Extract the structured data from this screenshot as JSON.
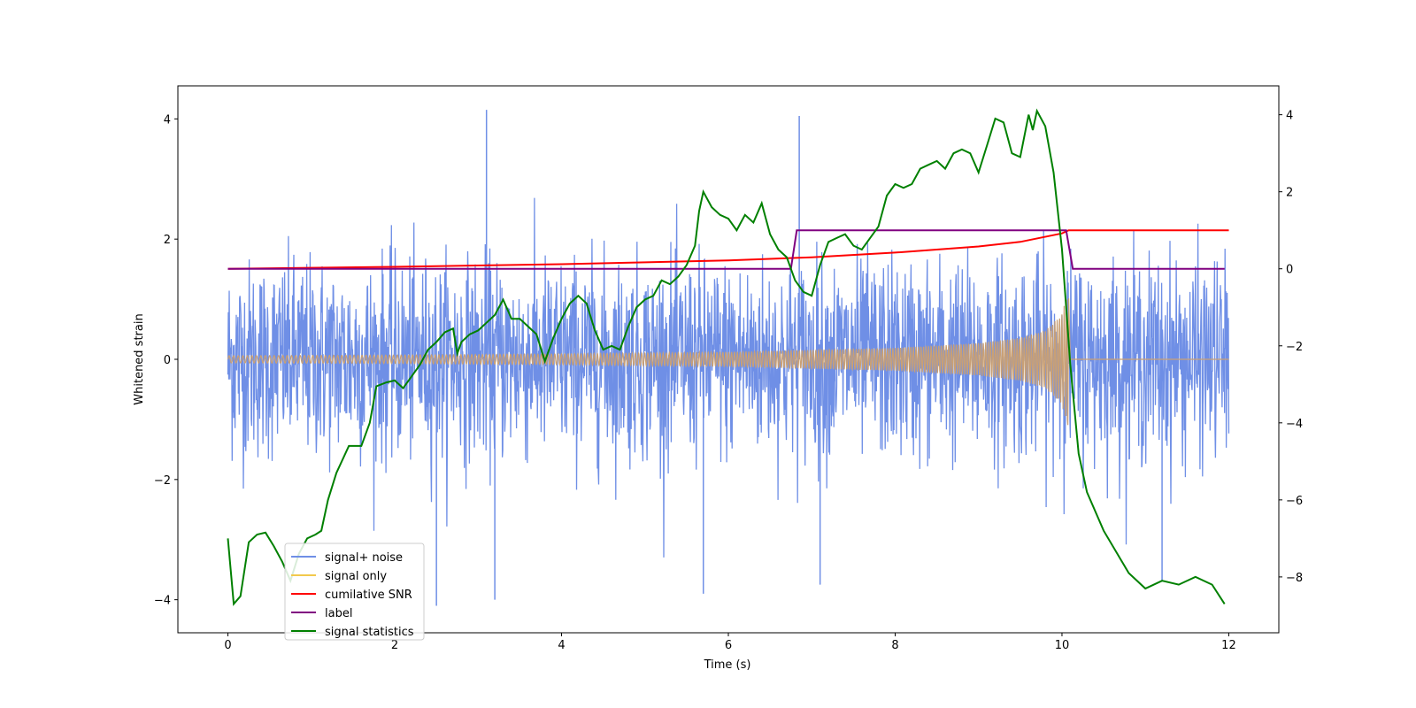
{
  "chart_data": {
    "type": "line",
    "title": "",
    "xlabel": "Time (s)",
    "ylabel": "Whitened strain",
    "xlim": [
      -0.6,
      12.6
    ],
    "ylim": [
      -4.55,
      4.55
    ],
    "y2lim": [
      -9.45,
      4.75
    ],
    "x_ticks": [
      0,
      2,
      4,
      6,
      8,
      10,
      12
    ],
    "y_ticks": [
      -4,
      -2,
      0,
      2,
      4
    ],
    "y2_ticks": [
      -8,
      -6,
      -4,
      -2,
      0,
      2,
      4
    ],
    "legend_position": "lower-left",
    "colors": {
      "noise": "#6f8fe6",
      "signal": "#c9a075",
      "snr": "#ff0000",
      "label": "#800080",
      "stats": "#008000"
    },
    "series": [
      {
        "name": "signal+ noise",
        "axis": "left",
        "style": "dense noise band, |strain| mostly within 1.4 with spikes up to about ±4.1",
        "spike_points": [
          {
            "x": 3.1,
            "y": 4.15
          },
          {
            "x": 6.85,
            "y": 4.05
          },
          {
            "x": 3.2,
            "y": -4.0
          },
          {
            "x": 2.5,
            "y": -4.1
          },
          {
            "x": 5.7,
            "y": -3.9
          },
          {
            "x": 7.1,
            "y": -3.75
          },
          {
            "x": 11.2,
            "y": -3.7
          }
        ]
      },
      {
        "name": "signal only",
        "axis": "left",
        "style": "chirp with growing amplitude, merger at t = 10.08 s",
        "envelope": {
          "x": [
            0,
            2,
            4,
            6,
            8,
            9,
            9.5,
            9.8,
            10.0,
            10.08
          ],
          "amplitude": [
            0.06,
            0.07,
            0.09,
            0.12,
            0.19,
            0.27,
            0.36,
            0.48,
            0.75,
            1.2
          ]
        }
      },
      {
        "name": "cumilative SNR",
        "axis": "right",
        "x": [
          0,
          2,
          4,
          6,
          7,
          8,
          9,
          9.5,
          10.0,
          10.08,
          12
        ],
        "y": [
          0,
          0.05,
          0.12,
          0.22,
          0.3,
          0.42,
          0.58,
          0.7,
          0.92,
          1.0,
          1.0
        ]
      },
      {
        "name": "label",
        "axis": "right",
        "x": [
          0,
          6.75,
          6.82,
          10.05,
          10.13,
          11.95
        ],
        "y": [
          0,
          0,
          1,
          1,
          0,
          0
        ]
      },
      {
        "name": "signal statistics",
        "axis": "right",
        "x": [
          0,
          0.07,
          0.15,
          0.25,
          0.35,
          0.45,
          0.55,
          0.65,
          0.75,
          0.85,
          0.95,
          1.05,
          1.12,
          1.2,
          1.3,
          1.45,
          1.6,
          1.7,
          1.78,
          1.9,
          2.0,
          2.1,
          2.2,
          2.3,
          2.4,
          2.5,
          2.6,
          2.7,
          2.75,
          2.8,
          2.9,
          3.0,
          3.1,
          3.2,
          3.3,
          3.4,
          3.5,
          3.6,
          3.7,
          3.8,
          3.9,
          4.0,
          4.1,
          4.2,
          4.3,
          4.4,
          4.5,
          4.6,
          4.7,
          4.8,
          4.9,
          5.0,
          5.1,
          5.2,
          5.3,
          5.4,
          5.5,
          5.6,
          5.65,
          5.7,
          5.8,
          5.9,
          6.0,
          6.1,
          6.2,
          6.3,
          6.4,
          6.5,
          6.6,
          6.7,
          6.8,
          6.9,
          7.0,
          7.1,
          7.2,
          7.3,
          7.4,
          7.5,
          7.6,
          7.7,
          7.8,
          7.9,
          8.0,
          8.1,
          8.2,
          8.3,
          8.4,
          8.5,
          8.6,
          8.7,
          8.8,
          8.9,
          9.0,
          9.1,
          9.2,
          9.3,
          9.4,
          9.5,
          9.6,
          9.65,
          9.7,
          9.8,
          9.9,
          10.0,
          10.1,
          10.2,
          10.3,
          10.5,
          10.8,
          11.0,
          11.2,
          11.4,
          11.6,
          11.8,
          11.95
        ],
        "y": [
          -7.0,
          -8.7,
          -8.5,
          -7.1,
          -6.9,
          -6.85,
          -7.2,
          -7.6,
          -8.1,
          -7.4,
          -7.0,
          -6.9,
          -6.8,
          -6.0,
          -5.3,
          -4.6,
          -4.6,
          -4.0,
          -3.05,
          -2.95,
          -2.9,
          -3.1,
          -2.8,
          -2.5,
          -2.1,
          -1.9,
          -1.65,
          -1.55,
          -2.2,
          -1.9,
          -1.7,
          -1.6,
          -1.4,
          -1.2,
          -0.8,
          -1.3,
          -1.3,
          -1.5,
          -1.7,
          -2.4,
          -1.8,
          -1.3,
          -0.9,
          -0.7,
          -0.9,
          -1.6,
          -2.1,
          -2.0,
          -2.1,
          -1.5,
          -1.0,
          -0.8,
          -0.7,
          -0.3,
          -0.4,
          -0.2,
          0.1,
          0.6,
          1.5,
          2.0,
          1.6,
          1.4,
          1.3,
          1.0,
          1.4,
          1.2,
          1.7,
          0.9,
          0.5,
          0.3,
          -0.3,
          -0.6,
          -0.7,
          0.1,
          0.7,
          0.8,
          0.9,
          0.6,
          0.5,
          0.8,
          1.1,
          1.9,
          2.2,
          2.1,
          2.2,
          2.6,
          2.7,
          2.8,
          2.6,
          3.0,
          3.1,
          3.0,
          2.5,
          3.2,
          3.9,
          3.8,
          3.0,
          2.9,
          4.0,
          3.6,
          4.1,
          3.7,
          2.5,
          0.5,
          -2.5,
          -4.8,
          -5.8,
          -6.8,
          -7.9,
          -8.3,
          -8.1,
          -8.2,
          -8.0,
          -8.2,
          -8.7
        ]
      }
    ]
  }
}
